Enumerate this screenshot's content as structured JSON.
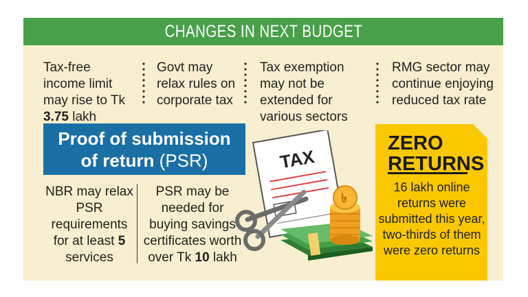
{
  "header": {
    "title": "CHANGES IN NEXT BUDGET"
  },
  "top_points": [
    {
      "pre": "Tax-free income limit may rise to Tk ",
      "bold": "3.75",
      "post": " lakh"
    },
    {
      "text": "Govt may relax rules on corporate tax"
    },
    {
      "text": "Tax exemption may not be extended for various sectors"
    },
    {
      "text": "RMG sector may continue enjoying reduced tax rate"
    }
  ],
  "psr": {
    "title_bold": "Proof of submission",
    "title_bold2": "of return",
    "title_abbr": "(PSR)",
    "point_a": {
      "pre": "NBR may relax PSR requirements for at least ",
      "bold": "5",
      "post": " services"
    },
    "point_b": {
      "pre": "PSR may be needed for buying savings certificates worth over Tk ",
      "bold": "10",
      "post": " lakh"
    }
  },
  "illustration": {
    "document_label": "TAX",
    "coin_symbol": "৳"
  },
  "zero_returns": {
    "title": "ZERO RETURNS",
    "text": "16 lakh online returns were submitted this year, two-thirds of them were zero returns"
  },
  "colors": {
    "header_bg": "#48a04a",
    "panel_bg": "#f7efcf",
    "psr_bg": "#1a6fa5",
    "zero_bg": "#f9c800"
  }
}
